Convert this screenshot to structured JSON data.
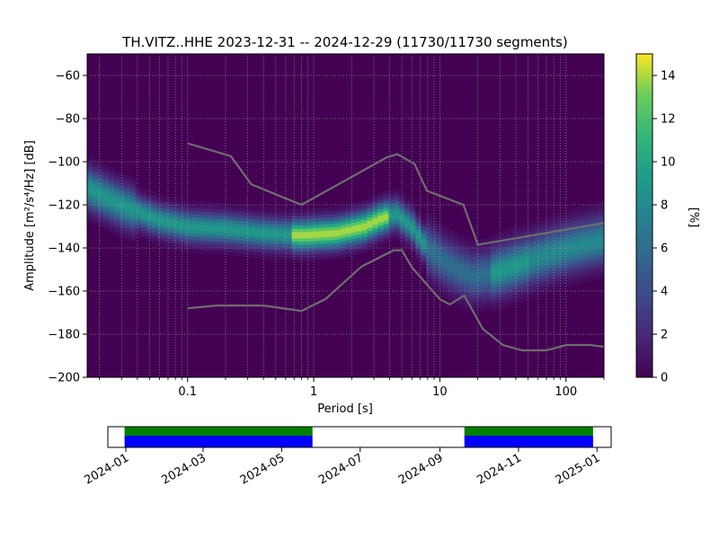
{
  "chart_data": {
    "type": "heatmap",
    "title": "TH.VITZ..HHE   2023-12-31 -- 2024-12-29  (11730/11730 segments)",
    "xlabel": "Period [s]",
    "ylabel": "Amplitude [m²/s⁴/Hz] [dB]",
    "x_scale": "log",
    "xlim": [
      0.016,
      200
    ],
    "ylim": [
      -200,
      -50
    ],
    "x_ticks": [
      {
        "value": 0.1,
        "label": "0.1"
      },
      {
        "value": 1,
        "label": "1"
      },
      {
        "value": 10,
        "label": "10"
      },
      {
        "value": 100,
        "label": "100"
      }
    ],
    "y_ticks": [
      {
        "value": -60,
        "label": "−60"
      },
      {
        "value": -80,
        "label": "−80"
      },
      {
        "value": -100,
        "label": "−100"
      },
      {
        "value": -120,
        "label": "−120"
      },
      {
        "value": -140,
        "label": "−140"
      },
      {
        "value": -160,
        "label": "−160"
      },
      {
        "value": -180,
        "label": "−180"
      },
      {
        "value": -200,
        "label": "−200"
      }
    ],
    "grid": true,
    "colorbar": {
      "label": "[%]",
      "range": [
        0,
        15
      ],
      "ticks": [
        {
          "value": 0,
          "label": "0"
        },
        {
          "value": 2,
          "label": "2"
        },
        {
          "value": 4,
          "label": "4"
        },
        {
          "value": 6,
          "label": "6"
        },
        {
          "value": 8,
          "label": "8"
        },
        {
          "value": 10,
          "label": "10"
        },
        {
          "value": 12,
          "label": "12"
        },
        {
          "value": 14,
          "label": "14"
        }
      ],
      "colormap": "viridis"
    },
    "mode_curve": [
      [
        0.016,
        -112
      ],
      [
        0.03,
        -120
      ],
      [
        0.06,
        -127
      ],
      [
        0.1,
        -130
      ],
      [
        0.2,
        -131
      ],
      [
        0.4,
        -133
      ],
      [
        0.8,
        -134
      ],
      [
        1.5,
        -133
      ],
      [
        2.5,
        -130
      ],
      [
        3.5,
        -126
      ],
      [
        4.5,
        -124
      ],
      [
        6,
        -130
      ],
      [
        8,
        -140
      ],
      [
        12,
        -148
      ],
      [
        18,
        -153
      ],
      [
        25,
        -152
      ],
      [
        40,
        -148
      ],
      [
        70,
        -143
      ],
      [
        120,
        -139
      ],
      [
        200,
        -136
      ]
    ],
    "high_noise_model": [
      [
        0.1,
        -91.5
      ],
      [
        0.22,
        -97.4
      ],
      [
        0.32,
        -110.5
      ],
      [
        0.8,
        -120
      ],
      [
        3.8,
        -98
      ],
      [
        4.6,
        -96.5
      ],
      [
        6.3,
        -101
      ],
      [
        7.9,
        -113.5
      ],
      [
        15.4,
        -120
      ],
      [
        20,
        -138.5
      ],
      [
        354,
        -126
      ]
    ],
    "low_noise_model": [
      [
        0.1,
        -168
      ],
      [
        0.17,
        -166.7
      ],
      [
        0.4,
        -166.7
      ],
      [
        0.8,
        -169.2
      ],
      [
        1.24,
        -163.7
      ],
      [
        2.4,
        -148.6
      ],
      [
        4.3,
        -141.1
      ],
      [
        5,
        -141.1
      ],
      [
        6,
        -149
      ],
      [
        10,
        -163.8
      ],
      [
        12,
        -166.2
      ],
      [
        15.6,
        -162.1
      ],
      [
        21.9,
        -177.5
      ],
      [
        31.6,
        -185
      ],
      [
        45,
        -187.5
      ],
      [
        70,
        -187.5
      ],
      [
        101,
        -185
      ],
      [
        154,
        -185
      ],
      [
        328,
        -187.5
      ]
    ],
    "noise_model_color": "#6e6e6e",
    "timeline": {
      "tick_labels": [
        "2024-01",
        "2024-03",
        "2024-05",
        "2024-07",
        "2024-09",
        "2024-11",
        "2025-01"
      ],
      "tick_dates": [
        "2024-01-01",
        "2024-03-01",
        "2024-05-01",
        "2024-07-01",
        "2024-09-01",
        "2024-11-01",
        "2025-01-01"
      ],
      "xlim": [
        "2023-12-18",
        "2025-01-12"
      ],
      "coverage": [
        {
          "start": "2023-12-31",
          "end": "2024-05-25"
        },
        {
          "start": "2024-09-20",
          "end": "2024-12-29"
        }
      ],
      "colors": {
        "green": "#008000",
        "blue": "#0000ff"
      }
    }
  }
}
